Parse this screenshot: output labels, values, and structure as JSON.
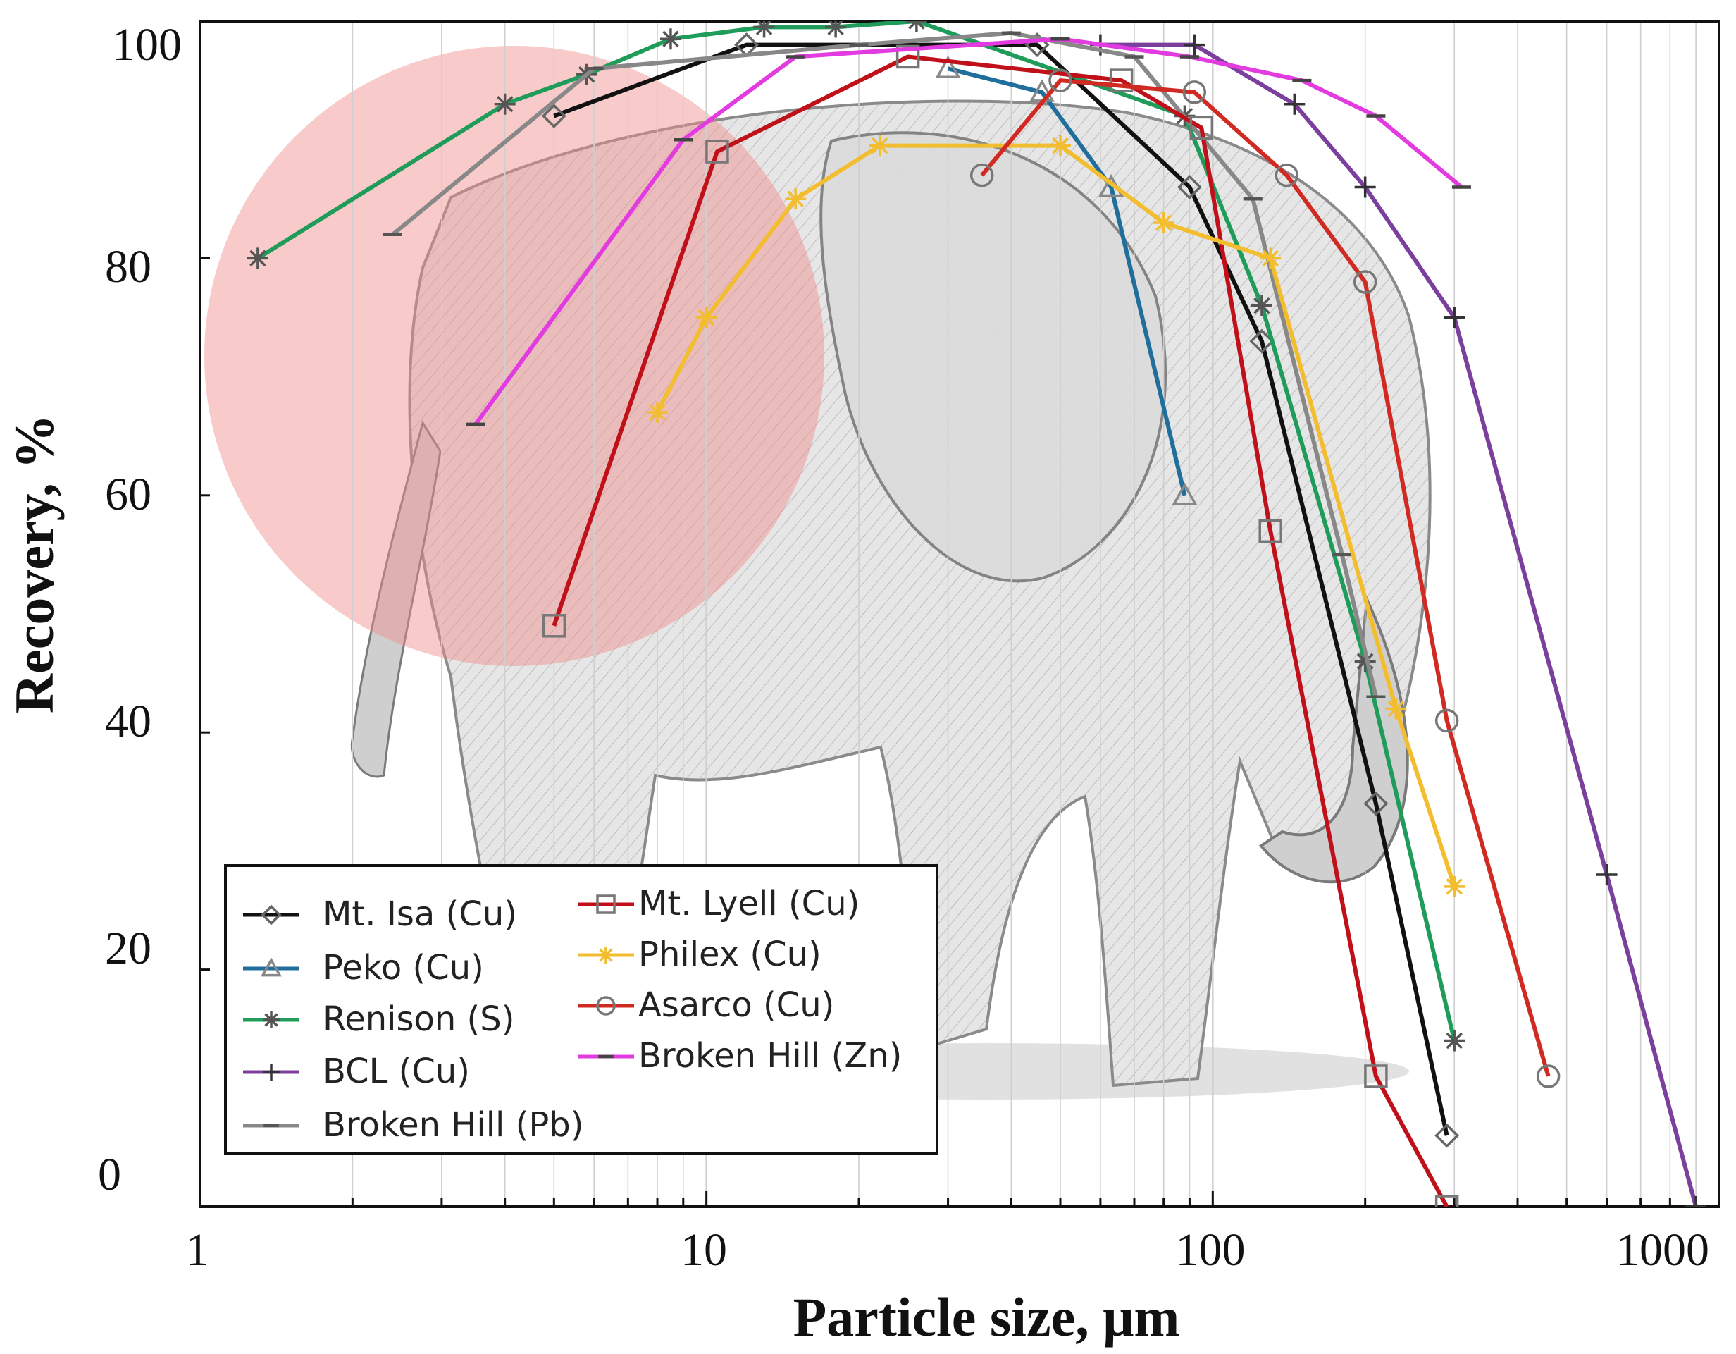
{
  "chart_data": {
    "type": "line",
    "title": "",
    "xlabel": "Particle size, μm",
    "ylabel": "Recovery, %",
    "xscale": "log",
    "xlim": [
      1,
      1000
    ],
    "ylim": [
      0,
      100
    ],
    "xticks": [
      "1",
      "10",
      "100",
      "1000"
    ],
    "yticks": [
      "0",
      "20",
      "40",
      "60",
      "80",
      "100"
    ],
    "grid": "vertical minor gridlines",
    "legend_position": "bottom-left",
    "background": "pencil sketch of an elephant with a translucent pink circle over the fine-particle region",
    "series": [
      {
        "name": "Mt. Isa (Cu)",
        "marker": "diamond",
        "color": "#111111",
        "marker_color": "#666666",
        "points": [
          [
            5,
            92
          ],
          [
            12,
            98
          ],
          [
            45,
            98
          ],
          [
            90,
            86
          ],
          [
            125,
            73
          ],
          [
            210,
            34
          ],
          [
            290,
            6
          ]
        ]
      },
      {
        "name": "Peko (Cu)",
        "marker": "triangle",
        "color": "#1f6e9c",
        "marker_color": "#888888",
        "points": [
          [
            30,
            96
          ],
          [
            46,
            94
          ],
          [
            63,
            86
          ],
          [
            88,
            60
          ]
        ]
      },
      {
        "name": "Renison (S)",
        "marker": "star",
        "color": "#1f9c5a",
        "marker_color": "#555555",
        "points": [
          [
            1.3,
            80
          ],
          [
            4,
            93
          ],
          [
            5.8,
            95.5
          ],
          [
            8.5,
            98.5
          ],
          [
            13,
            99.5
          ],
          [
            18,
            99.5
          ],
          [
            26,
            100
          ],
          [
            88,
            92
          ],
          [
            125,
            76
          ],
          [
            200,
            46
          ],
          [
            300,
            14
          ]
        ]
      },
      {
        "name": "BCL (Cu)",
        "marker": "plus",
        "color": "#7b3f9e",
        "marker_color": "#333333",
        "points": [
          [
            60,
            98
          ],
          [
            92,
            98
          ],
          [
            145,
            93
          ],
          [
            200,
            86
          ],
          [
            300,
            75
          ],
          [
            600,
            28
          ],
          [
            900,
            0
          ]
        ]
      },
      {
        "name": "Broken Hill (Pb)",
        "marker": "dash",
        "color": "#888888",
        "marker_color": "#555555",
        "points": [
          [
            2.4,
            82
          ],
          [
            6,
            96
          ],
          [
            20,
            98
          ],
          [
            40,
            99
          ],
          [
            70,
            97
          ],
          [
            120,
            85
          ],
          [
            180,
            55
          ],
          [
            210,
            43
          ]
        ]
      },
      {
        "name": "Mt. Lyell (Cu)",
        "marker": "square",
        "color": "#c0101a",
        "marker_color": "#777777",
        "points": [
          [
            5,
            49
          ],
          [
            10.5,
            89
          ],
          [
            25,
            97
          ],
          [
            66,
            95
          ],
          [
            95,
            91
          ],
          [
            130,
            57
          ],
          [
            210,
            11
          ],
          [
            290,
            0
          ]
        ]
      },
      {
        "name": "Philex (Cu)",
        "marker": "star",
        "color": "#f2bd2e",
        "marker_color": "#f2bd2e",
        "points": [
          [
            8,
            67
          ],
          [
            10,
            75
          ],
          [
            15,
            85
          ],
          [
            22,
            89.5
          ],
          [
            50,
            89.5
          ],
          [
            80,
            83
          ],
          [
            130,
            80
          ],
          [
            230,
            42
          ],
          [
            300,
            27
          ]
        ]
      },
      {
        "name": "Asarco (Cu)",
        "marker": "circle",
        "color": "#d12a22",
        "marker_color": "#777777",
        "points": [
          [
            35,
            87
          ],
          [
            50,
            95
          ],
          [
            92,
            94
          ],
          [
            140,
            87
          ],
          [
            200,
            78
          ],
          [
            290,
            41
          ],
          [
            460,
            11
          ]
        ]
      },
      {
        "name": "Broken Hill (Zn)",
        "marker": "dash",
        "color": "#e23be0",
        "marker_color": "#444444",
        "points": [
          [
            3.5,
            66
          ],
          [
            9,
            90
          ],
          [
            15,
            97
          ],
          [
            50,
            98.5
          ],
          [
            90,
            97
          ],
          [
            150,
            95
          ],
          [
            210,
            92
          ],
          [
            310,
            86
          ]
        ]
      }
    ]
  }
}
